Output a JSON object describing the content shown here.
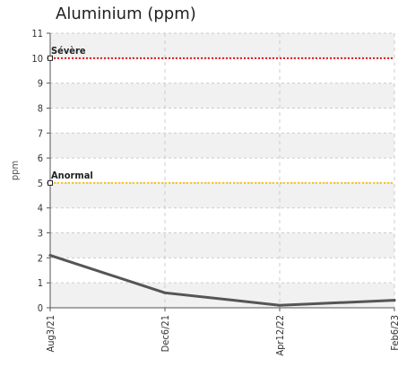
{
  "chart_data": {
    "type": "line",
    "title": "Aluminium (ppm)",
    "xlabel": "",
    "ylabel": "ppm",
    "ylim": [
      0,
      11
    ],
    "y_ticks": [
      "0",
      "1",
      "2",
      "3",
      "4",
      "5",
      "6",
      "7",
      "8",
      "9",
      "10",
      "11"
    ],
    "categories": [
      "Aug3/21",
      "Dec6/21",
      "Apr12/22",
      "Feb6/23"
    ],
    "series": [
      {
        "name": "",
        "x": [
          "Aug3/21",
          "Dec6/21",
          "Apr12/22",
          "Feb6/23"
        ],
        "values": [
          2.1,
          0.6,
          0.1,
          0.3
        ]
      }
    ],
    "thresholds": [
      {
        "label": "Sévère",
        "value": 10,
        "color": "#e8141c"
      },
      {
        "label": "Anormal",
        "value": 5,
        "color": "#f5c518"
      }
    ],
    "grid": true,
    "legend": "none",
    "colors": {
      "line": "#555555",
      "band": "#f1f1f1",
      "grid": "#cccccc"
    }
  }
}
